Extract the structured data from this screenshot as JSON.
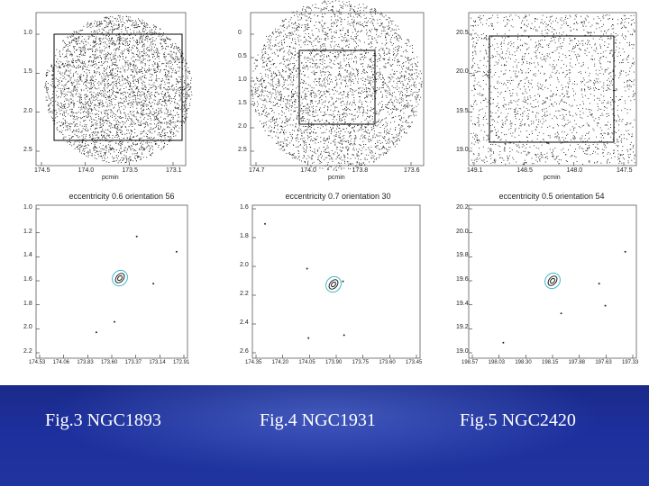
{
  "captions": [
    "Fig.3 NGC1893",
    "Fig.4 NGC1931",
    "Fig.5 NGC2420"
  ],
  "colors": {
    "band_top": "#1a2a8a",
    "band_bottom": "#20349f",
    "contour": "#3fb8c8",
    "points": "#111111"
  },
  "panels": [
    {
      "name": "ngc1893",
      "top_y_ticks": [
        "1.0",
        "1.5",
        "2.0",
        "2.5"
      ],
      "top_x_ticks": [
        "174.5",
        "174.0",
        "173.5",
        "173.1"
      ],
      "top_xlabel": "pcmin",
      "top_density": 0.95,
      "caption": "eccentricity 0.6 orientation 56",
      "bottom_y_ticks": [
        "1.0",
        "1.2",
        "1.4",
        "1.6",
        "1.8",
        "2.0",
        "2.2"
      ],
      "bottom_x_ticks": [
        "174.53",
        "174.06",
        "173.83",
        "173.60",
        "173.37",
        "173.14",
        "172.91"
      ]
    },
    {
      "name": "ngc1931",
      "top_y_ticks": [
        "0",
        "0.5",
        "1.0",
        "1.5",
        "2.0",
        "2.5"
      ],
      "top_x_ticks": [
        "174.7",
        "174.0",
        "173.8",
        "173.6"
      ],
      "top_xlabel": "pcmin",
      "top_density": 0.9,
      "caption": "eccentricity 0.7 orientation 30",
      "bottom_y_ticks": [
        "1.6",
        "1.8",
        "2.0",
        "2.2",
        "2.4",
        "2.6"
      ],
      "bottom_x_ticks": [
        "174.35",
        "174.20",
        "174.05",
        "173.90",
        "173.75",
        "173.60",
        "173.45"
      ]
    },
    {
      "name": "ngc2420",
      "top_y_ticks": [
        "20.5",
        "20.0",
        "19.5",
        "19.0"
      ],
      "top_x_ticks": [
        "149.1",
        "148.5",
        "148.0",
        "147.5"
      ],
      "top_xlabel": "pcmin",
      "top_density": 0.55,
      "caption": "eccentricity 0.5 orientation 54",
      "bottom_y_ticks": [
        "20.2",
        "20.0",
        "19.8",
        "19.6",
        "19.4",
        "19.2",
        "19.0"
      ],
      "bottom_x_ticks": [
        "198.57",
        "198.03",
        "198.30",
        "198.15",
        "197.88",
        "197.63",
        "197.33"
      ]
    }
  ]
}
